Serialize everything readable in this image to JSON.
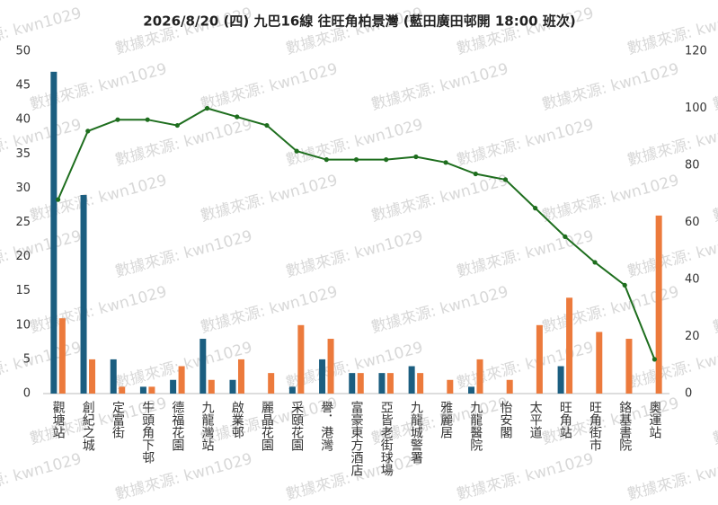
{
  "chart_data": {
    "type": "bar-line",
    "title": "2026/8/20 (四) 九巴16線 往旺角柏景灣 (藍田廣田邨開 18:00 班次)",
    "watermark": "數據來源: kwn1029",
    "categories": [
      "觀塘站",
      "創紀之城",
      "定富街",
      "牛頭角下邨",
      "德福花園",
      "九龍灣站",
      "啟業邨",
      "麗晶花園",
      "采頤花園",
      "譽．港灣",
      "富豪東方酒店",
      "亞皆老街球場",
      "九龍城警署",
      "雅麗居",
      "九龍醫院",
      "怡安閣",
      "太平道",
      "旺角站",
      "旺角街市",
      "鉻基書院",
      "奧運站"
    ],
    "series": [
      {
        "type": "bar",
        "color": "#1b5e80",
        "values": [
          47,
          29,
          5,
          1,
          2,
          8,
          2,
          0,
          1,
          5,
          3,
          3,
          4,
          0,
          1,
          0,
          0,
          4,
          0,
          0,
          0
        ]
      },
      {
        "type": "bar",
        "color": "#ec7a3c",
        "values": [
          11,
          5,
          1,
          1,
          4,
          2,
          5,
          3,
          10,
          8,
          3,
          3,
          3,
          2,
          5,
          2,
          10,
          14,
          9,
          8,
          26
        ]
      },
      {
        "type": "line",
        "axis": "y2",
        "color": "#1e6e1e",
        "values": [
          68,
          92,
          96,
          96,
          94,
          100,
          97,
          94,
          85,
          82,
          82,
          82,
          83,
          81,
          77,
          75,
          65,
          55,
          46,
          38,
          12
        ]
      }
    ],
    "ylim": [
      0,
      50
    ],
    "yticks": [
      0,
      5,
      10,
      15,
      20,
      25,
      30,
      35,
      40,
      45,
      50
    ],
    "y2lim": [
      0,
      120
    ],
    "y2ticks": [
      0,
      20,
      40,
      60,
      80,
      100,
      120
    ],
    "grid": false
  }
}
